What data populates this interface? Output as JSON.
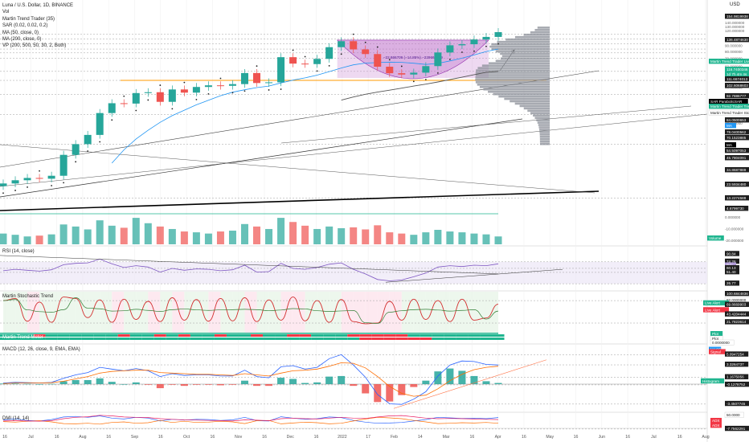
{
  "header": {
    "symbol_line": "Luna / U.S. Dollar, 1D, BINANCE",
    "indicators": [
      "Vol",
      "Martin Trend Trader (35)",
      "SAR (0.02, 0.02, 0.2)",
      "MA (50, close, 0)",
      "MA (200, close, 0)",
      "VP (200, 500, 50, 30, 2, Both)"
    ]
  },
  "pane_titles": {
    "rsi": "RSI (14, close)",
    "stoch": "Martin Stochastic Trend",
    "meter": "Martin Trend Meter",
    "macd": "MACD (12, 26, close, 9, EMA, EMA)",
    "dmi": "DMI (14, 14)"
  },
  "currency_label": "USD",
  "colors": {
    "up": "#26a69a",
    "down": "#ef5350",
    "teal": "#1fb58f",
    "red": "#f23645",
    "cup": "#ce93d8",
    "volume_profile": "#8a8d97",
    "support": "#ff9800",
    "ma50": "#2196f3",
    "ma200": "#555555",
    "rsi_band": "#ede7f6",
    "stoch_zone_red": "#fce4ec",
    "stoch_zone_green": "#e8f5e9"
  },
  "x_axis_labels": [
    "16",
    "Jul",
    "16",
    "Aug",
    "16",
    "Sep",
    "16",
    "Oct",
    "16",
    "Nov",
    "16",
    "Dec",
    "16",
    "2022",
    "17",
    "Feb",
    "14",
    "Mar",
    "16",
    "Apr",
    "16",
    "May",
    "16",
    "Jun",
    "16",
    "Jul",
    "16",
    "Aug"
  ],
  "main_axis_ticks": [
    "160.000000",
    "140.000000",
    "130.000000",
    "120.000000",
    "100.000000",
    "90.000000",
    "80.000000",
    "70.000000",
    "60.000000",
    "50.000000",
    "40.000000",
    "30.000000",
    "20.000000",
    "10.000000",
    "0.000000",
    "-10.000000",
    "-20.000000"
  ],
  "main_price_labels": [
    {
      "text": "154.9819938",
      "style": "dark"
    },
    {
      "text": "136.4874630",
      "style": "dark"
    },
    {
      "text": "Martin Trend Trader Live Alert",
      "style": "teal"
    },
    {
      "text": "116.7400346",
      "style": "teal"
    },
    {
      "text": "1d 7h 4m 4s",
      "style": "teal"
    },
    {
      "text": "111.6674013",
      "style": "dark"
    },
    {
      "text": "102.6068603",
      "style": "dark"
    },
    {
      "text": "92.7886777",
      "style": "dark"
    },
    {
      "text": "SAR ParabolicSAR",
      "style": "black"
    },
    {
      "text": "Martin Trend Trader Trend Line",
      "style": "teal"
    },
    {
      "text": "Martin Trend Trader Stop Loss",
      "style": "plain"
    },
    {
      "text": "84.0500653",
      "style": "dark"
    },
    {
      "text": "MA",
      "style": "blue"
    },
    {
      "text": "78.0400562",
      "style": "dark"
    },
    {
      "text": "70.1523885",
      "style": "dark"
    },
    {
      "text": "MA",
      "style": "black"
    },
    {
      "text": "54.5097053",
      "style": "dark"
    },
    {
      "text": "45.7804091",
      "style": "dark"
    },
    {
      "text": "34.8687889",
      "style": "dark"
    },
    {
      "text": "23.5934480",
      "style": "dark"
    },
    {
      "text": "13.2274588",
      "style": "dark"
    },
    {
      "text": "4.6799730",
      "style": "dark"
    }
  ],
  "volume_label": "Volume",
  "cup_annotation": "−22.866709 (−14.85%) −229667099",
  "rsi_axis": [
    {
      "text": "90.84",
      "style": "dark"
    },
    {
      "text": "74.26",
      "style": "dark"
    },
    {
      "text": "RSI",
      "style": "purple"
    },
    {
      "text": "60.13",
      "style": "dark"
    },
    {
      "text": "51.40",
      "style": "dark"
    },
    {
      "text": "26.77",
      "style": "dark"
    }
  ],
  "stoch_axis": [
    {
      "text": "100.6844836",
      "style": "dark"
    },
    {
      "text": "82.0000000",
      "style": "plain"
    },
    {
      "text": "Live Alert",
      "style": "teal"
    },
    {
      "text": "69.8669903",
      "style": "dark"
    },
    {
      "text": "Live Alert",
      "style": "red"
    },
    {
      "text": "43.4204444",
      "style": "dark"
    },
    {
      "text": "21.7823614",
      "style": "dark"
    }
  ],
  "meter_axis": [
    {
      "text": "Plot",
      "style": "teal"
    },
    {
      "text": "Plot",
      "style": "plain"
    },
    {
      "text": "0.0000000",
      "style": "plain"
    }
  ],
  "macd_axis": [
    {
      "text": "MACD",
      "style": "blue"
    },
    {
      "text": "Signal",
      "style": "red"
    },
    {
      "text": "5.0947254",
      "style": "dark"
    },
    {
      "text": "3.3264737",
      "style": "dark"
    },
    {
      "text": "1.1675056",
      "style": "dark"
    },
    {
      "text": "Histogram",
      "style": "teal"
    },
    {
      "text": "-0.1278752",
      "style": "dark"
    },
    {
      "text": "-3.4507745",
      "style": "dark"
    },
    {
      "text": "-7.7562291",
      "style": "dark"
    }
  ],
  "dmi_axis": [
    {
      "text": "50.0000",
      "style": "plain"
    },
    {
      "text": "ADX",
      "style": "red"
    },
    {
      "text": "ADX",
      "style": "red"
    }
  ],
  "chart_data": {
    "type": "candlestick",
    "currency": "USD",
    "price_scale": "log",
    "x": [
      "2021-06-20",
      "2021-06-27",
      "2021-07-04",
      "2021-07-11",
      "2021-07-18",
      "2021-07-25",
      "2021-08-01",
      "2021-08-08",
      "2021-08-15",
      "2021-08-22",
      "2021-08-29",
      "2021-09-05",
      "2021-09-12",
      "2021-09-19",
      "2021-09-26",
      "2021-10-03",
      "2021-10-10",
      "2021-10-17",
      "2021-10-24",
      "2021-10-31",
      "2021-11-07",
      "2021-11-14",
      "2021-11-21",
      "2021-11-28",
      "2021-12-05",
      "2021-12-12",
      "2021-12-19",
      "2021-12-26",
      "2022-01-02",
      "2022-01-09",
      "2022-01-16",
      "2022-01-23",
      "2022-01-30",
      "2022-02-06",
      "2022-02-13",
      "2022-02-20",
      "2022-02-27",
      "2022-03-06",
      "2022-03-13",
      "2022-03-20",
      "2022-03-27",
      "2022-04-03"
    ],
    "close": [
      6.2,
      6.6,
      6.9,
      6.8,
      7.2,
      10.8,
      13.3,
      15.9,
      24.3,
      29.4,
      29.2,
      35.8,
      36.4,
      30.2,
      38.4,
      36.1,
      40.3,
      41.6,
      41.2,
      42.6,
      52.8,
      43.5,
      44.1,
      71.8,
      63.4,
      62.8,
      69.5,
      87.2,
      97.9,
      83.5,
      76.3,
      59.7,
      52.6,
      51.3,
      53.2,
      60.4,
      78.7,
      90.4,
      92.3,
      101.2,
      106.4,
      116.7
    ],
    "ma50": [
      null,
      null,
      null,
      null,
      null,
      null,
      null,
      null,
      null,
      9.2,
      11.9,
      14.7,
      17.4,
      20.3,
      23.1,
      25.7,
      28.5,
      31.1,
      34.0,
      36.4,
      38.2,
      39.8,
      41.0,
      43.6,
      46.0,
      48.1,
      50.7,
      54.3,
      58.2,
      61.9,
      64.0,
      64.6,
      65.2,
      64.9,
      63.8,
      62.4,
      63.6,
      66.8,
      70.4,
      75.0,
      80.1,
      84.1
    ],
    "ma200": [
      null,
      null,
      null,
      null,
      null,
      null,
      null,
      null,
      null,
      null,
      null,
      null,
      null,
      null,
      null,
      null,
      null,
      null,
      null,
      null,
      null,
      null,
      null,
      null,
      null,
      null,
      null,
      null,
      31.2,
      33.2,
      35.0,
      36.5,
      37.9,
      39.4,
      41.0,
      42.6,
      44.4,
      46.5,
      48.7,
      51.2,
      53.6,
      54.5
    ],
    "volume_millions": [
      26,
      23,
      19,
      21,
      24,
      48,
      43,
      36,
      58,
      45,
      40,
      64,
      51,
      43,
      37,
      31,
      29,
      26,
      31,
      33,
      49,
      43,
      37,
      64,
      54,
      45,
      37,
      43,
      39,
      41,
      36,
      46,
      29,
      26,
      23,
      29,
      35,
      31,
      29,
      26,
      24,
      19
    ],
    "rsi": [
      55,
      58,
      56,
      54,
      57,
      68,
      71,
      72,
      80,
      70,
      62,
      66,
      63,
      52,
      60,
      56,
      59,
      58,
      55,
      57,
      67,
      52,
      53,
      71,
      60,
      58,
      62,
      69,
      72,
      58,
      48,
      36,
      33,
      35,
      42,
      50,
      63,
      66,
      64,
      67,
      66,
      70
    ],
    "stoch_k": [
      82,
      88,
      25,
      78,
      22,
      92,
      88,
      35,
      84,
      22,
      86,
      30,
      80,
      24,
      90,
      28,
      85,
      25,
      88,
      26,
      90,
      24,
      84,
      28,
      92,
      26,
      82,
      22,
      85,
      24,
      18,
      20,
      80,
      28,
      86,
      30,
      82,
      24,
      86,
      28,
      34,
      72
    ],
    "macd": [
      0.2,
      0.3,
      0.25,
      0.2,
      0.3,
      1.0,
      1.6,
      2.0,
      2.9,
      2.6,
      2.3,
      2.7,
      2.3,
      1.3,
      1.8,
      1.5,
      1.6,
      1.6,
      1.4,
      1.4,
      2.4,
      1.3,
      1.1,
      3.0,
      3.2,
      2.6,
      2.9,
      4.4,
      5.1,
      3.3,
      1.2,
      -1.8,
      -3.4,
      -3.5,
      -2.6,
      -1.3,
      1.4,
      3.3,
      4.0,
      3.9,
      3.4,
      3.3
    ],
    "signal": [
      0.1,
      0.2,
      0.2,
      0.2,
      0.25,
      0.5,
      0.9,
      1.3,
      1.9,
      2.2,
      2.3,
      2.4,
      2.4,
      2.0,
      1.9,
      1.8,
      1.7,
      1.7,
      1.6,
      1.5,
      1.8,
      1.6,
      1.4,
      1.9,
      2.3,
      2.4,
      2.6,
      3.1,
      3.7,
      3.6,
      2.8,
      1.3,
      -0.4,
      -1.6,
      -2.1,
      -1.9,
      -0.8,
      0.6,
      1.7,
      2.5,
      2.9,
      3.1
    ],
    "dmi_plus": [
      24,
      27,
      22,
      20,
      25,
      34,
      36,
      33,
      38,
      30,
      27,
      33,
      30,
      20,
      26,
      23,
      26,
      25,
      22,
      24,
      33,
      21,
      20,
      35,
      30,
      26,
      28,
      34,
      32,
      22,
      16,
      12,
      13,
      15,
      20,
      25,
      33,
      31,
      29,
      30,
      28,
      32
    ],
    "dmi_minus": [
      18,
      16,
      19,
      21,
      17,
      11,
      10,
      12,
      9,
      15,
      17,
      12,
      14,
      22,
      15,
      19,
      15,
      16,
      19,
      17,
      11,
      21,
      22,
      10,
      13,
      16,
      14,
      10,
      12,
      20,
      27,
      33,
      31,
      28,
      22,
      17,
      11,
      12,
      14,
      13,
      15,
      12
    ],
    "adx": [
      20,
      21,
      20,
      19,
      21,
      28,
      33,
      35,
      40,
      38,
      34,
      33,
      32,
      28,
      26,
      24,
      23,
      22,
      21,
      20,
      24,
      23,
      21,
      28,
      30,
      28,
      27,
      30,
      33,
      30,
      29,
      34,
      38,
      39,
      35,
      30,
      28,
      29,
      28,
      27,
      26,
      25
    ],
    "cup_range": {
      "start": "2022-01-02",
      "end": "2022-03-27",
      "price_top": 100,
      "price_bottom": 48
    },
    "support_level": 45.78,
    "volume_profile_price_range": [
      13,
      130
    ]
  }
}
